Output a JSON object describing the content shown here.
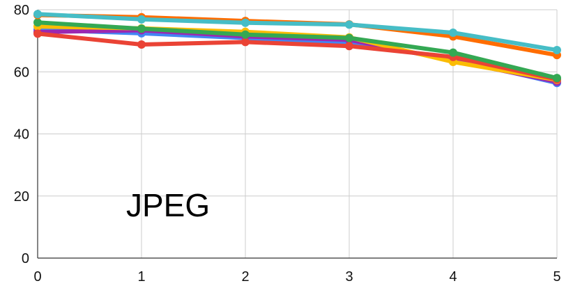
{
  "chart_data": {
    "type": "line",
    "title": "",
    "xlabel": "",
    "ylabel": "",
    "annotation": "JPEG",
    "x": [
      0,
      1,
      2,
      3,
      4,
      5
    ],
    "xticks": [
      "0",
      "1",
      "2",
      "3",
      "4",
      "5"
    ],
    "yticks": [
      "0",
      "20",
      "40",
      "60",
      "80"
    ],
    "ylim": [
      0,
      80
    ],
    "xlim": [
      0,
      5
    ],
    "grid": true,
    "legend": "none",
    "series": [
      {
        "color": "#4285f4",
        "values": [
          73.6,
          72.4,
          70.9,
          69.4,
          64.2,
          56.4
        ]
      },
      {
        "color": "#9c27b0",
        "values": [
          72.8,
          73.4,
          71.4,
          70.3,
          63.6,
          56.8
        ]
      },
      {
        "color": "#fbbc04",
        "values": [
          74.6,
          74.0,
          72.9,
          71.1,
          63.2,
          57.4
        ]
      },
      {
        "color": "#ea4335",
        "values": [
          72.3,
          68.8,
          69.6,
          68.3,
          64.8,
          57.6
        ]
      },
      {
        "color": "#34a853",
        "values": [
          75.9,
          73.9,
          72.0,
          70.9,
          66.2,
          58.0
        ]
      },
      {
        "color": "#ff6d01",
        "values": [
          78.3,
          77.6,
          76.4,
          75.3,
          71.4,
          65.4
        ]
      },
      {
        "color": "#46bdc6",
        "values": [
          78.6,
          76.9,
          75.8,
          75.2,
          72.6,
          67.0
        ]
      }
    ]
  }
}
